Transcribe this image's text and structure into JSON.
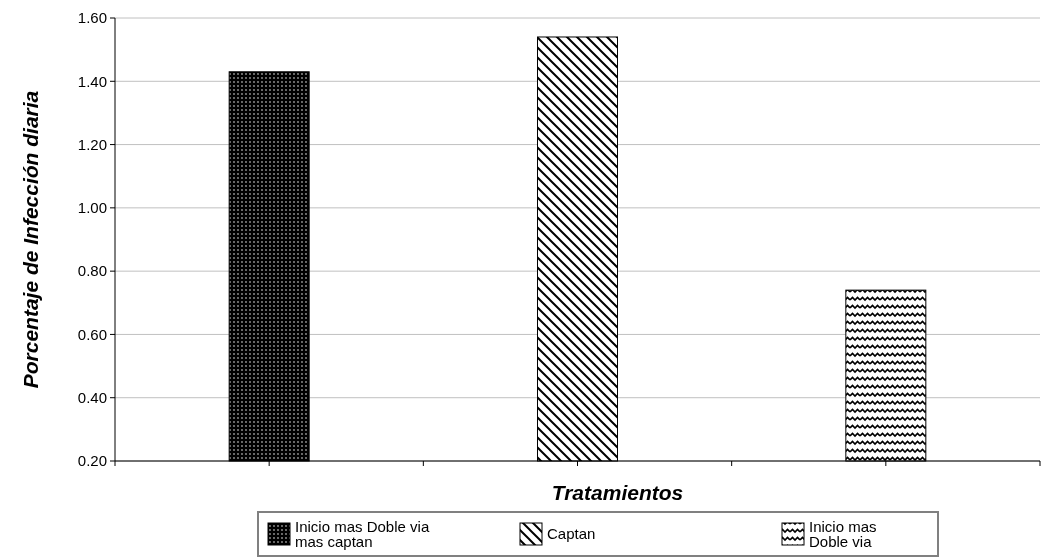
{
  "chart_data": {
    "type": "bar",
    "xlabel": "Tratamientos",
    "ylabel": "Porcentaje de Infección diaria",
    "categories": [
      null
    ],
    "series": [
      {
        "name": "Inicio mas Doble via mas captan",
        "color": "#000000",
        "values": [
          1.43
        ]
      },
      {
        "name": "Captan",
        "color": "#000000",
        "values": [
          1.54
        ]
      },
      {
        "name": "Inicio mas Doble via",
        "color": "#000000",
        "values": [
          0.74
        ]
      }
    ],
    "ylim": [
      0.2,
      1.6
    ],
    "yticks": [
      {
        "value": 0.2,
        "label": "0.20"
      },
      {
        "value": 0.4,
        "label": "0.40"
      },
      {
        "value": 0.6,
        "label": "0.60"
      },
      {
        "value": 0.8,
        "label": "0.80"
      },
      {
        "value": 1.0,
        "label": "1.00"
      },
      {
        "value": 1.2,
        "label": "1.20"
      },
      {
        "value": 1.4,
        "label": "1.40"
      },
      {
        "value": 1.6,
        "label": "1.60"
      }
    ],
    "grid": "y",
    "legend": "bottom"
  }
}
